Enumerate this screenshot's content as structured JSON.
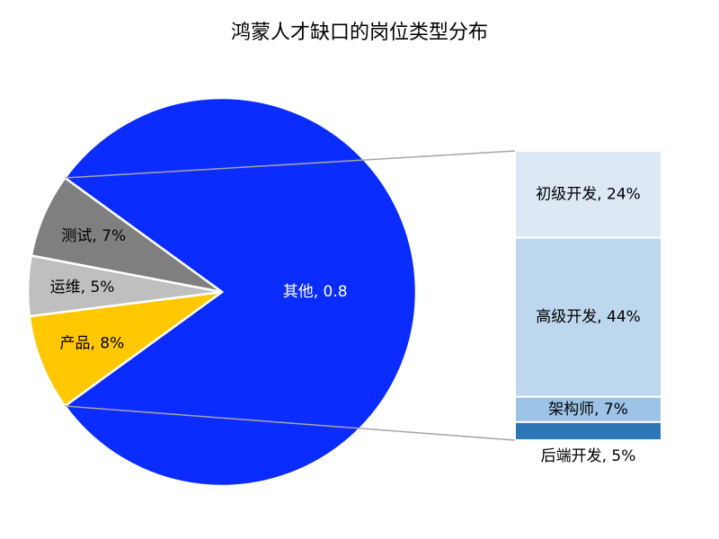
{
  "chart_data": {
    "type": "pie",
    "title": "鸿蒙人才缺口的岗位类型分布",
    "slices": [
      {
        "name": "其他",
        "value": 80,
        "label": "其他, 0.8",
        "color": "#0a2cff",
        "label_color": "#ffffff"
      },
      {
        "name": "产品",
        "value": 8,
        "label": "产品, 8%",
        "color": "#ffc800",
        "label_color": "#000000"
      },
      {
        "name": "运维",
        "value": 5,
        "label": "运维, 5%",
        "color": "#bfbfbf",
        "label_color": "#000000"
      },
      {
        "name": "测试",
        "value": 7,
        "label": "测试, 7%",
        "color": "#7f7f7f",
        "label_color": "#000000"
      }
    ],
    "breakdown_of": "其他",
    "breakdown": [
      {
        "name": "初级开发",
        "value": 24,
        "label": "初级开发, 24%",
        "color": "#dde8f5"
      },
      {
        "name": "高级开发",
        "value": 44,
        "label": "高级开发, 44%",
        "color": "#bdd7ee"
      },
      {
        "name": "架构师",
        "value": 7,
        "label": "架构师, 7%",
        "color": "#9dc3e6"
      },
      {
        "name": "后端开发",
        "value": 5,
        "label": "后端开发, 5%",
        "color": "#2e75b6"
      }
    ],
    "connector_color": "#a6a6a6"
  }
}
